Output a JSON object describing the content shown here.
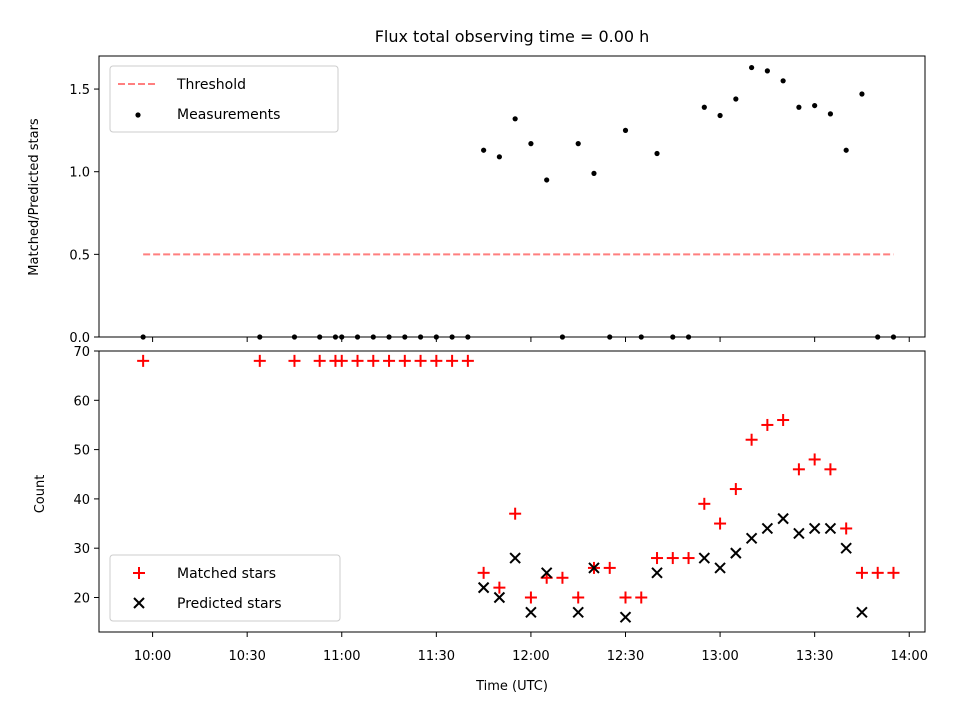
{
  "chart_data": [
    {
      "type": "scatter",
      "title": "Flux total observing time = 0.00 h",
      "xlabel": "",
      "ylabel": "Matched/Predicted stars",
      "ylim": [
        0,
        1.7
      ],
      "yticks": [
        "0.0",
        "0.5",
        "1.0",
        "1.5"
      ],
      "legend_position": "top-left",
      "threshold": {
        "name": "Threshold",
        "value": 0.5,
        "x_start": "09:57",
        "x_end": "13:55",
        "color": "#ff7f7f",
        "style": "dashed"
      },
      "series": [
        {
          "name": "Measurements",
          "color": "#000000",
          "marker": "dot",
          "points": [
            [
              "09:57",
              0.0
            ],
            [
              "10:34",
              0.0
            ],
            [
              "10:45",
              0.0
            ],
            [
              "10:53",
              0.0
            ],
            [
              "10:58",
              0.0
            ],
            [
              "11:00",
              0.0
            ],
            [
              "11:05",
              0.0
            ],
            [
              "11:10",
              0.0
            ],
            [
              "11:15",
              0.0
            ],
            [
              "11:20",
              0.0
            ],
            [
              "11:25",
              0.0
            ],
            [
              "11:30",
              0.0
            ],
            [
              "11:35",
              0.0
            ],
            [
              "11:40",
              0.0
            ],
            [
              "11:45",
              1.13
            ],
            [
              "11:50",
              1.09
            ],
            [
              "11:55",
              1.32
            ],
            [
              "12:00",
              1.17
            ],
            [
              "12:05",
              0.95
            ],
            [
              "12:10",
              0.0
            ],
            [
              "12:15",
              1.17
            ],
            [
              "12:20",
              0.99
            ],
            [
              "12:25",
              0.0
            ],
            [
              "12:30",
              1.25
            ],
            [
              "12:35",
              0.0
            ],
            [
              "12:40",
              1.11
            ],
            [
              "12:45",
              0.0
            ],
            [
              "12:50",
              0.0
            ],
            [
              "12:55",
              1.39
            ],
            [
              "13:00",
              1.34
            ],
            [
              "13:05",
              1.44
            ],
            [
              "13:10",
              1.63
            ],
            [
              "13:15",
              1.61
            ],
            [
              "13:20",
              1.55
            ],
            [
              "13:25",
              1.39
            ],
            [
              "13:30",
              1.4
            ],
            [
              "13:35",
              1.35
            ],
            [
              "13:40",
              1.13
            ],
            [
              "13:45",
              1.47
            ],
            [
              "13:50",
              0.0
            ],
            [
              "13:55",
              0.0
            ]
          ]
        }
      ]
    },
    {
      "type": "scatter",
      "title": "",
      "xlabel": "Time (UTC)",
      "ylabel": "Count",
      "ylim": [
        13,
        70
      ],
      "xlim": [
        "09:43",
        "14:05"
      ],
      "yticks": [
        "20",
        "30",
        "40",
        "50",
        "60",
        "70"
      ],
      "xticks": [
        "10:00",
        "10:30",
        "11:00",
        "11:30",
        "12:00",
        "12:30",
        "13:00",
        "13:30",
        "14:00"
      ],
      "legend_position": "bottom-left",
      "series": [
        {
          "name": "Matched stars",
          "color": "#ff0000",
          "marker": "plus",
          "points": [
            [
              "09:57",
              68
            ],
            [
              "10:34",
              68
            ],
            [
              "10:45",
              68
            ],
            [
              "10:53",
              68
            ],
            [
              "10:58",
              68
            ],
            [
              "11:00",
              68
            ],
            [
              "11:05",
              68
            ],
            [
              "11:10",
              68
            ],
            [
              "11:15",
              68
            ],
            [
              "11:20",
              68
            ],
            [
              "11:25",
              68
            ],
            [
              "11:30",
              68
            ],
            [
              "11:35",
              68
            ],
            [
              "11:40",
              68
            ],
            [
              "11:45",
              25
            ],
            [
              "11:50",
              22
            ],
            [
              "11:55",
              37
            ],
            [
              "12:00",
              20
            ],
            [
              "12:05",
              24
            ],
            [
              "12:10",
              24
            ],
            [
              "12:15",
              20
            ],
            [
              "12:20",
              26
            ],
            [
              "12:25",
              26
            ],
            [
              "12:30",
              20
            ],
            [
              "12:35",
              20
            ],
            [
              "12:40",
              28
            ],
            [
              "12:45",
              28
            ],
            [
              "12:50",
              28
            ],
            [
              "12:55",
              39
            ],
            [
              "13:00",
              35
            ],
            [
              "13:05",
              42
            ],
            [
              "13:10",
              52
            ],
            [
              "13:15",
              55
            ],
            [
              "13:20",
              56
            ],
            [
              "13:25",
              46
            ],
            [
              "13:30",
              48
            ],
            [
              "13:35",
              46
            ],
            [
              "13:40",
              34
            ],
            [
              "13:45",
              25
            ],
            [
              "13:50",
              25
            ],
            [
              "13:55",
              25
            ]
          ]
        },
        {
          "name": "Predicted stars",
          "color": "#000000",
          "marker": "x",
          "points": [
            [
              "11:45",
              22
            ],
            [
              "11:50",
              20
            ],
            [
              "11:55",
              28
            ],
            [
              "12:00",
              17
            ],
            [
              "12:05",
              25
            ],
            [
              "12:15",
              17
            ],
            [
              "12:20",
              26
            ],
            [
              "12:30",
              16
            ],
            [
              "12:40",
              25
            ],
            [
              "12:55",
              28
            ],
            [
              "13:00",
              26
            ],
            [
              "13:05",
              29
            ],
            [
              "13:10",
              32
            ],
            [
              "13:15",
              34
            ],
            [
              "13:20",
              36
            ],
            [
              "13:25",
              33
            ],
            [
              "13:30",
              34
            ],
            [
              "13:35",
              34
            ],
            [
              "13:40",
              30
            ],
            [
              "13:45",
              17
            ]
          ]
        }
      ]
    }
  ]
}
